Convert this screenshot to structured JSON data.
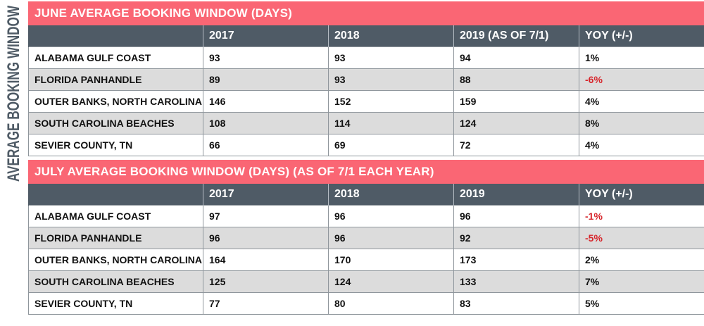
{
  "side_title": "AVERAGE BOOKING WINDOW",
  "chart_data": [
    {
      "type": "table",
      "title": "JUNE AVERAGE BOOKING WINDOW (DAYS)",
      "columns": [
        "",
        "2017",
        "2018",
        "2019 (AS OF 7/1)",
        "YOY (+/-)"
      ],
      "rows": [
        {
          "label": "ALABAMA GULF COAST",
          "values": [
            "93",
            "93",
            "94",
            "1%"
          ],
          "yoy_negative": false
        },
        {
          "label": "FLORIDA PANHANDLE",
          "values": [
            "89",
            "93",
            "88",
            "-6%"
          ],
          "yoy_negative": true
        },
        {
          "label": "OUTER BANKS, NORTH CAROLINA",
          "values": [
            "146",
            "152",
            "159",
            "4%"
          ],
          "yoy_negative": false
        },
        {
          "label": "SOUTH CAROLINA BEACHES",
          "values": [
            "108",
            "114",
            "124",
            "8%"
          ],
          "yoy_negative": false
        },
        {
          "label": "SEVIER COUNTY, TN",
          "values": [
            "66",
            "69",
            "72",
            "4%"
          ],
          "yoy_negative": false
        }
      ]
    },
    {
      "type": "table",
      "title": "JULY AVERAGE BOOKING WINDOW (DAYS) (AS OF 7/1 EACH YEAR)",
      "columns": [
        "",
        "2017",
        "2018",
        "2019",
        "YOY (+/-)"
      ],
      "rows": [
        {
          "label": "ALABAMA GULF COAST",
          "values": [
            "97",
            "96",
            "96",
            "-1%"
          ],
          "yoy_negative": true
        },
        {
          "label": "FLORIDA PANHANDLE",
          "values": [
            "96",
            "96",
            "92",
            "-5%"
          ],
          "yoy_negative": true
        },
        {
          "label": "OUTER BANKS, NORTH CAROLINA",
          "values": [
            "164",
            "170",
            "173",
            "2%"
          ],
          "yoy_negative": false
        },
        {
          "label": "SOUTH CAROLINA BEACHES",
          "values": [
            "125",
            "124",
            "133",
            "7%"
          ],
          "yoy_negative": false
        },
        {
          "label": "SEVIER COUNTY, TN",
          "values": [
            "77",
            "80",
            "83",
            "5%"
          ],
          "yoy_negative": false
        }
      ]
    }
  ],
  "colors": {
    "title_bar": "#fa6674",
    "header_bar": "#4f5b66",
    "alt_row": "#dcdcdc",
    "negative_text": "#d7262c",
    "side_title_text": "#4f5b66"
  }
}
